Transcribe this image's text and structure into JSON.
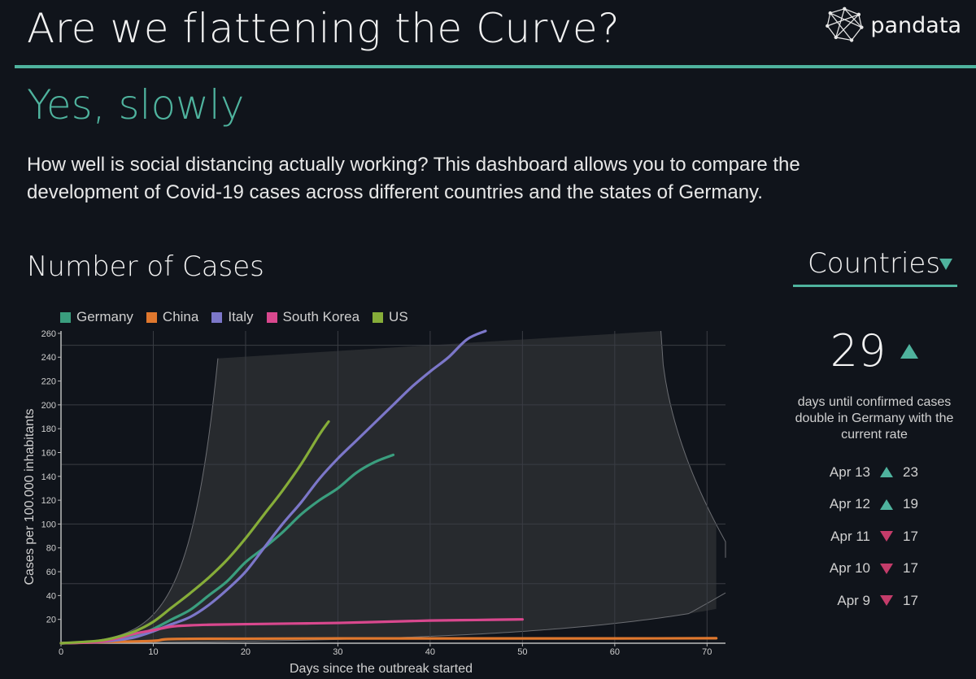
{
  "header": {
    "title": "Are we flattening the Curve?",
    "logo_text": "pandata"
  },
  "hero": {
    "subtitle": "Yes, slowly",
    "intro": "How well is social distancing actually working? This dashboard allows you to compare the development of Covid-19 cases across different countries and the states of Germany."
  },
  "section": {
    "title": "Number of Cases"
  },
  "dropdown": {
    "selected": "Countries"
  },
  "stats": {
    "doubling_days": "29",
    "trend": "up",
    "caption": "days until confirmed cases double in Germany with the current rate",
    "history": [
      {
        "date": "Apr 13",
        "trend": "up",
        "value": "23"
      },
      {
        "date": "Apr 12",
        "trend": "up",
        "value": "19"
      },
      {
        "date": "Apr 11",
        "trend": "down",
        "value": "17"
      },
      {
        "date": "Apr 10",
        "trend": "down",
        "value": "17"
      },
      {
        "date": "Apr 9",
        "trend": "down",
        "value": "17"
      }
    ]
  },
  "colors": {
    "accent": "#4fb39e",
    "down": "#c43c6a"
  },
  "chart_data": {
    "type": "line",
    "xlabel": "Days since the outbreak started",
    "ylabel": "Cases per 100.000 inhabitants",
    "xlim": [
      0,
      72
    ],
    "ylim": [
      0,
      262
    ],
    "x_ticks": [
      0,
      10,
      20,
      30,
      40,
      50,
      60,
      70
    ],
    "y_ticks": [
      20,
      40,
      60,
      80,
      100,
      120,
      140,
      160,
      180,
      200,
      220,
      240,
      260
    ],
    "grid": true,
    "legend_position": "top-left",
    "series": [
      {
        "name": "Germany",
        "color": "#3a9e7e",
        "points": [
          [
            0,
            0
          ],
          [
            4,
            1
          ],
          [
            6,
            3
          ],
          [
            8,
            6
          ],
          [
            10,
            12
          ],
          [
            12,
            20
          ],
          [
            14,
            28
          ],
          [
            16,
            40
          ],
          [
            18,
            52
          ],
          [
            20,
            68
          ],
          [
            22,
            80
          ],
          [
            24,
            93
          ],
          [
            26,
            108
          ],
          [
            28,
            120
          ],
          [
            30,
            130
          ],
          [
            32,
            143
          ],
          [
            34,
            152
          ],
          [
            36,
            158
          ]
        ]
      },
      {
        "name": "China",
        "color": "#e0782e",
        "points": [
          [
            0,
            0
          ],
          [
            5,
            1
          ],
          [
            10,
            2
          ],
          [
            12,
            3.5
          ],
          [
            20,
            3.8
          ],
          [
            30,
            4
          ],
          [
            40,
            4
          ],
          [
            50,
            4
          ],
          [
            60,
            4
          ],
          [
            71,
            4.2
          ]
        ]
      },
      {
        "name": "Italy",
        "color": "#7c77c9",
        "points": [
          [
            0,
            0
          ],
          [
            4,
            1
          ],
          [
            6,
            2.5
          ],
          [
            8,
            5
          ],
          [
            10,
            10
          ],
          [
            12,
            16
          ],
          [
            14,
            22
          ],
          [
            16,
            32
          ],
          [
            18,
            45
          ],
          [
            20,
            60
          ],
          [
            22,
            80
          ],
          [
            24,
            100
          ],
          [
            26,
            118
          ],
          [
            28,
            138
          ],
          [
            30,
            155
          ],
          [
            32,
            170
          ],
          [
            34,
            185
          ],
          [
            36,
            200
          ],
          [
            38,
            215
          ],
          [
            40,
            228
          ],
          [
            42,
            240
          ],
          [
            44,
            255
          ],
          [
            46,
            263
          ]
        ]
      },
      {
        "name": "South Korea",
        "color": "#d9488e",
        "points": [
          [
            0,
            0
          ],
          [
            4,
            1
          ],
          [
            6,
            4
          ],
          [
            8,
            8
          ],
          [
            10,
            11
          ],
          [
            12,
            14
          ],
          [
            14,
            15
          ],
          [
            16,
            15.5
          ],
          [
            20,
            16
          ],
          [
            25,
            16.5
          ],
          [
            30,
            17
          ],
          [
            35,
            18
          ],
          [
            40,
            19
          ],
          [
            45,
            19.5
          ],
          [
            50,
            20
          ]
        ]
      },
      {
        "name": "US",
        "color": "#86ad39",
        "points": [
          [
            0,
            0
          ],
          [
            4,
            2
          ],
          [
            6,
            5
          ],
          [
            8,
            10
          ],
          [
            10,
            18
          ],
          [
            12,
            30
          ],
          [
            14,
            42
          ],
          [
            16,
            55
          ],
          [
            18,
            70
          ],
          [
            20,
            88
          ],
          [
            22,
            108
          ],
          [
            24,
            128
          ],
          [
            26,
            150
          ],
          [
            28,
            175
          ],
          [
            29,
            186
          ]
        ]
      }
    ]
  }
}
